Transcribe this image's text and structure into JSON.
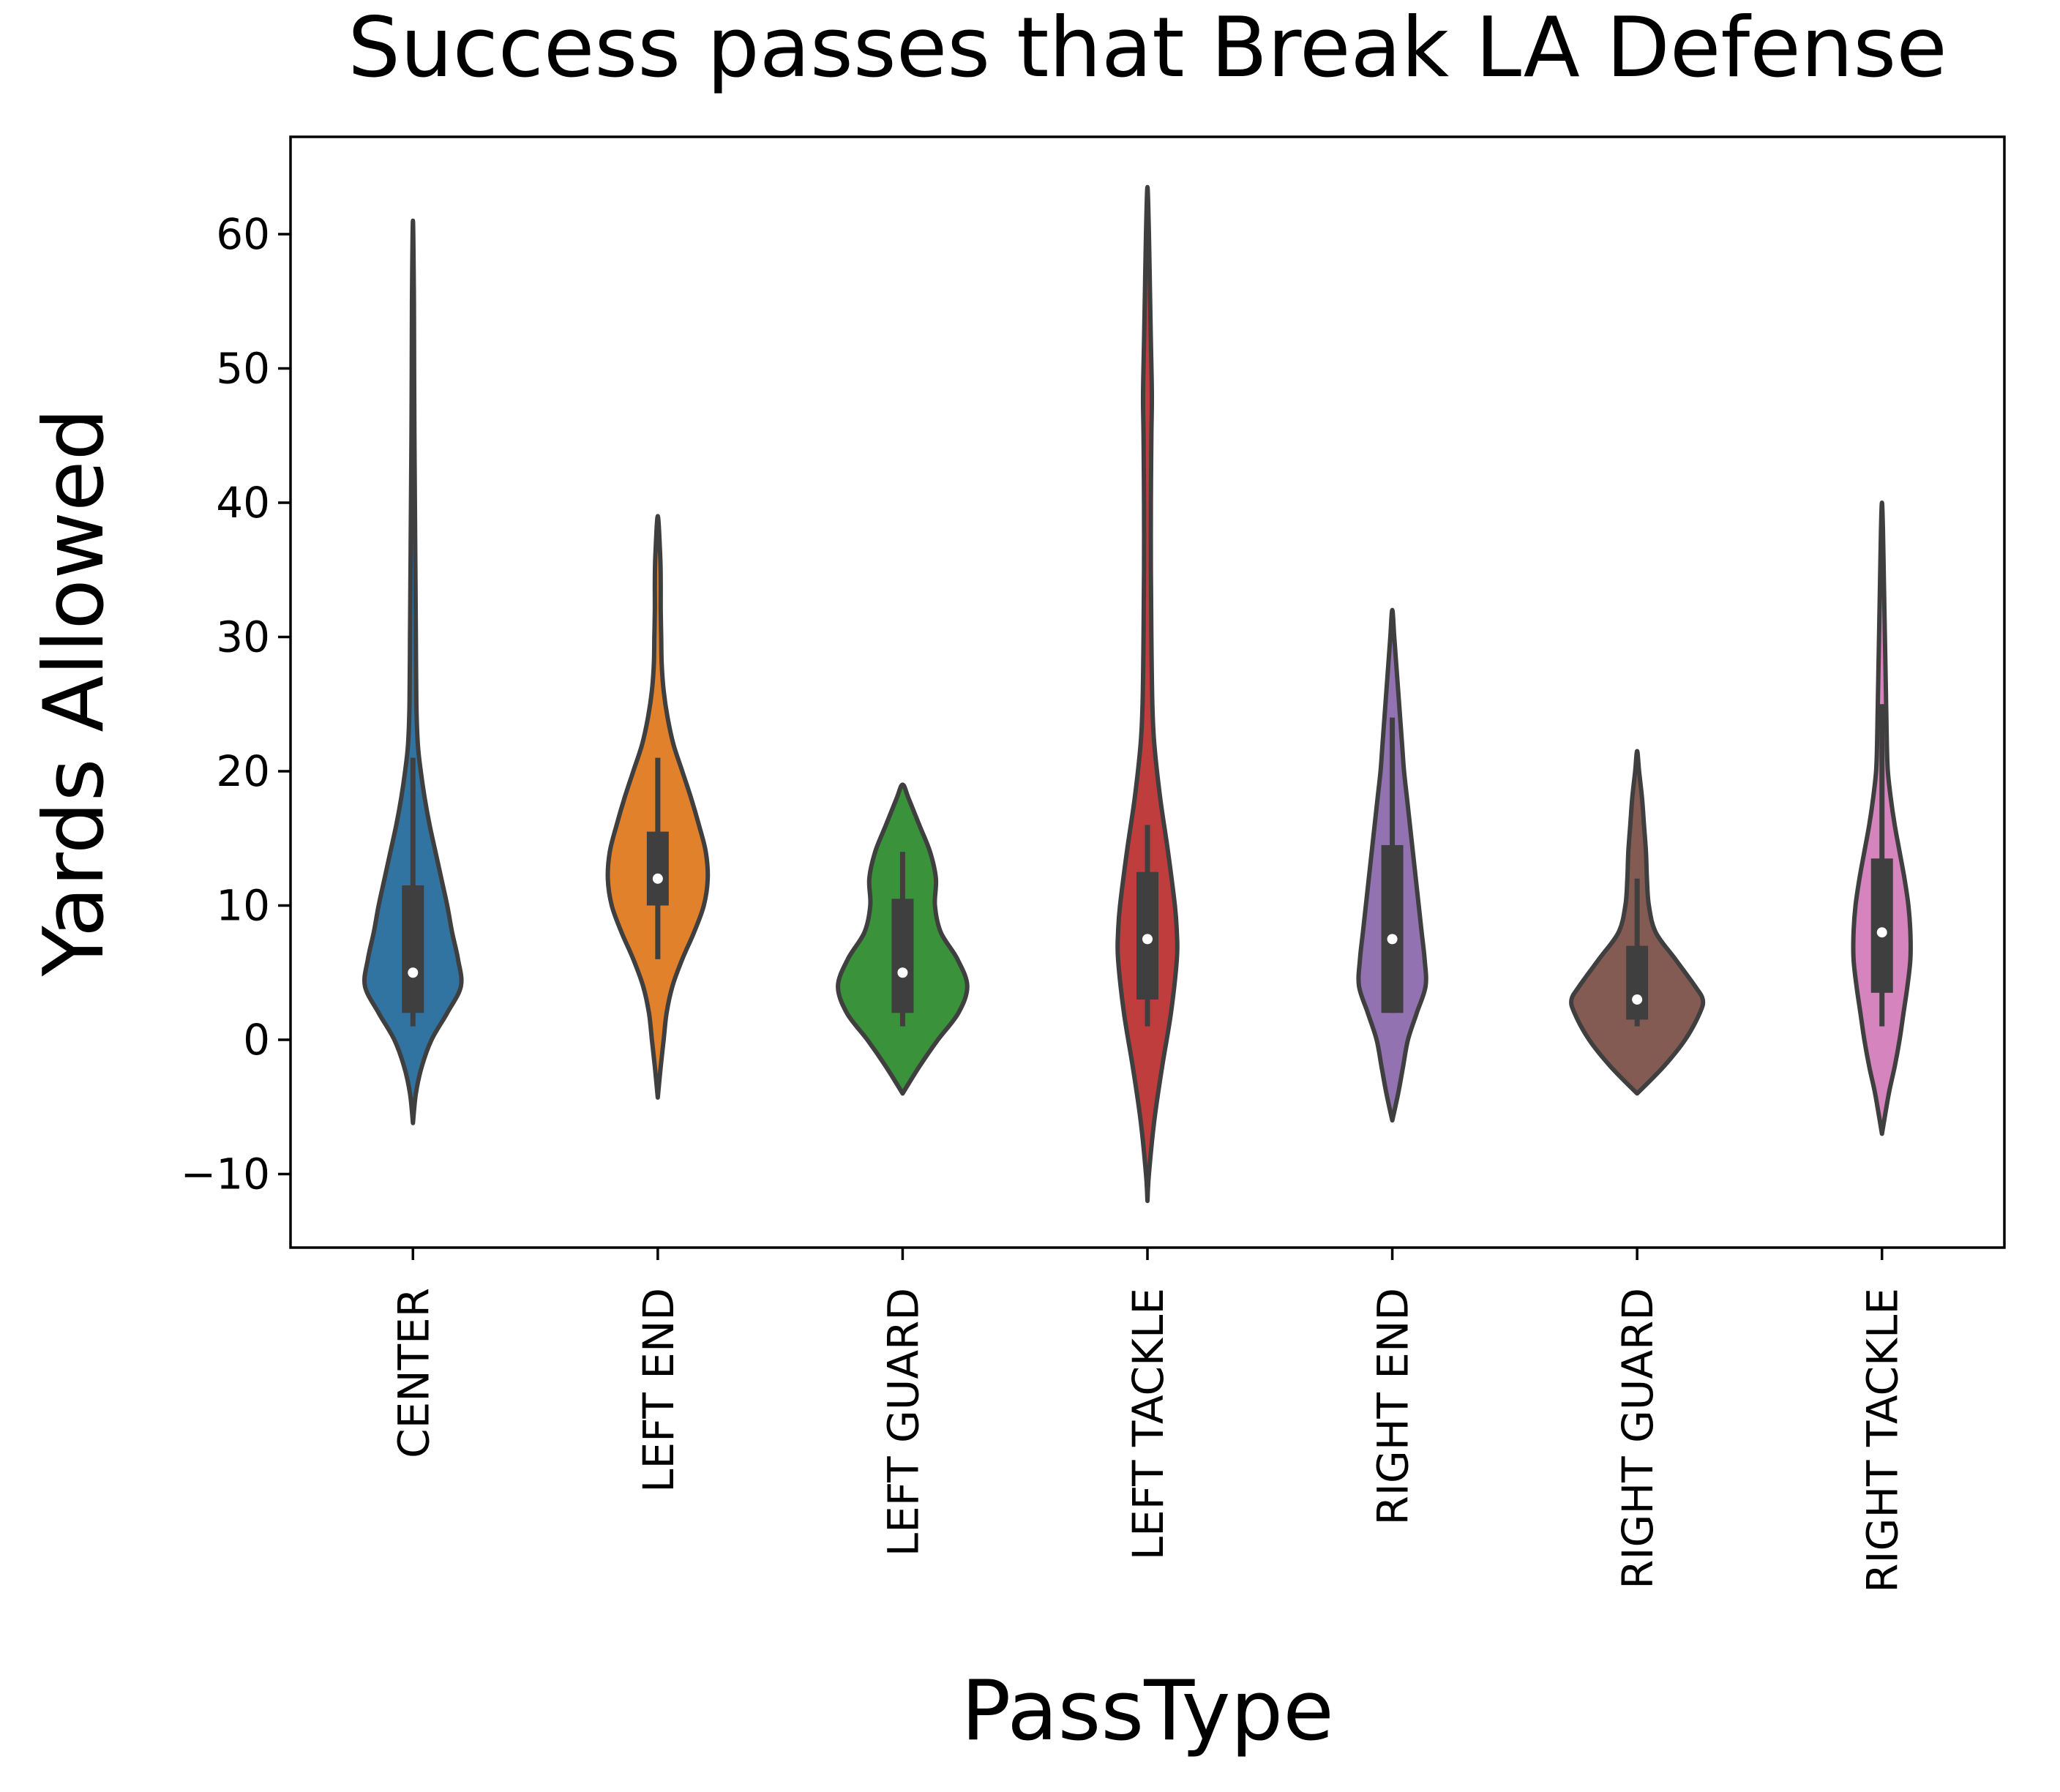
{
  "chart_data": {
    "type": "violin",
    "title": "Success passes that Break LA Defense",
    "xlabel": "PassType",
    "ylabel": "Yards Allowed",
    "ylim": [
      -15.5,
      67.5
    ],
    "yticks": [
      -10,
      0,
      10,
      20,
      30,
      40,
      50,
      60
    ],
    "ytick_labels": [
      "−10",
      "0",
      "10",
      "20",
      "30",
      "40",
      "50",
      "60"
    ],
    "grid": false,
    "legend": "none",
    "categories": [
      "CENTER",
      "LEFT END",
      "LEFT GUARD",
      "LEFT TACKLE",
      "RIGHT END",
      "RIGHT GUARD",
      "RIGHT TACKLE"
    ],
    "series": [
      {
        "category": "CENTER",
        "color": "#3274a1",
        "range": [
          -6,
          61
        ],
        "whisker": [
          1,
          21
        ],
        "q1": 2,
        "median": 5,
        "q3": 11.5,
        "density_y": [
          -6.2,
          -4,
          -2,
          0,
          2,
          4,
          6,
          8,
          10,
          12,
          14,
          16,
          18,
          20,
          22,
          25,
          30,
          35,
          40,
          45,
          50,
          55,
          61
        ],
        "density_w": [
          0,
          0.03,
          0.09,
          0.19,
          0.35,
          0.49,
          0.46,
          0.4,
          0.35,
          0.29,
          0.23,
          0.17,
          0.12,
          0.08,
          0.05,
          0.035,
          0.03,
          0.025,
          0.02,
          0.015,
          0.012,
          0.01,
          0
        ]
      },
      {
        "category": "LEFT END",
        "color": "#e1812c",
        "range": [
          -4,
          39
        ],
        "whisker": [
          6,
          21
        ],
        "q1": 10,
        "median": 12,
        "q3": 15.5,
        "density_y": [
          -4.3,
          -2,
          0,
          2,
          4,
          6,
          8,
          10,
          12,
          14,
          16,
          18,
          20,
          22,
          24,
          26,
          28,
          30,
          32,
          34,
          36,
          39
        ],
        "density_w": [
          0,
          0.03,
          0.06,
          0.09,
          0.15,
          0.25,
          0.37,
          0.47,
          0.51,
          0.49,
          0.42,
          0.34,
          0.25,
          0.16,
          0.1,
          0.06,
          0.04,
          0.035,
          0.03,
          0.03,
          0.025,
          0
        ]
      },
      {
        "category": "LEFT GUARD",
        "color": "#3a923a",
        "range": [
          -4,
          19
        ],
        "whisker": [
          1,
          14
        ],
        "q1": 2,
        "median": 5,
        "q3": 10.5,
        "density_y": [
          -4,
          -2,
          0,
          2,
          4,
          6,
          8,
          10,
          12,
          14,
          16,
          18,
          19
        ],
        "density_w": [
          0,
          0.17,
          0.36,
          0.57,
          0.66,
          0.56,
          0.39,
          0.33,
          0.34,
          0.28,
          0.17,
          0.06,
          0
        ]
      },
      {
        "category": "LEFT TACKLE",
        "color": "#c03d3e",
        "range": [
          -12,
          63.5
        ],
        "whisker": [
          1,
          16
        ],
        "q1": 3,
        "median": 7.5,
        "q3": 12.5,
        "density_y": [
          -12,
          -10,
          -6,
          -2,
          2,
          6,
          8,
          10,
          14,
          18,
          22,
          25,
          30,
          35,
          40,
          45,
          48,
          52,
          56,
          60,
          63.5
        ],
        "density_w": [
          0,
          0.015,
          0.07,
          0.15,
          0.24,
          0.3,
          0.3,
          0.28,
          0.21,
          0.13,
          0.07,
          0.05,
          0.04,
          0.035,
          0.035,
          0.04,
          0.045,
          0.035,
          0.025,
          0.015,
          0
        ]
      },
      {
        "category": "RIGHT END",
        "color": "#9372b2",
        "range": [
          -6,
          32
        ],
        "whisker": [
          2,
          24
        ],
        "q1": 2,
        "median": 7.5,
        "q3": 14.5,
        "density_y": [
          -6,
          -4,
          -2,
          0,
          2,
          4,
          6,
          8,
          10,
          12,
          14,
          16,
          18,
          20,
          22,
          24,
          26,
          28,
          30,
          32
        ],
        "density_w": [
          0,
          0.06,
          0.11,
          0.16,
          0.25,
          0.34,
          0.33,
          0.3,
          0.27,
          0.24,
          0.21,
          0.18,
          0.15,
          0.12,
          0.1,
          0.08,
          0.06,
          0.04,
          0.02,
          0
        ]
      },
      {
        "category": "RIGHT GUARD",
        "color": "#845b53",
        "range": [
          -4,
          21.5
        ],
        "whisker": [
          1,
          12
        ],
        "q1": 1.5,
        "median": 3,
        "q3": 7,
        "density_y": [
          -4,
          -2,
          0,
          2,
          3,
          4,
          6,
          8,
          10,
          12,
          14,
          16,
          18,
          20,
          21.5
        ],
        "density_w": [
          0,
          0.27,
          0.49,
          0.64,
          0.67,
          0.59,
          0.39,
          0.19,
          0.12,
          0.1,
          0.09,
          0.07,
          0.05,
          0.02,
          0
        ]
      },
      {
        "category": "RIGHT TACKLE",
        "color": "#d684bd",
        "range": [
          -7,
          40
        ],
        "whisker": [
          1,
          25
        ],
        "q1": 3.5,
        "median": 8,
        "q3": 13.5,
        "density_y": [
          -7,
          -4,
          -2,
          0,
          2,
          4,
          6,
          8,
          10,
          12,
          14,
          16,
          18,
          20,
          22,
          24,
          26,
          28,
          30,
          34,
          38,
          40
        ],
        "density_w": [
          0,
          0.07,
          0.13,
          0.18,
          0.22,
          0.26,
          0.29,
          0.29,
          0.27,
          0.23,
          0.18,
          0.13,
          0.09,
          0.06,
          0.05,
          0.045,
          0.04,
          0.035,
          0.03,
          0.02,
          0.01,
          0
        ]
      }
    ]
  }
}
